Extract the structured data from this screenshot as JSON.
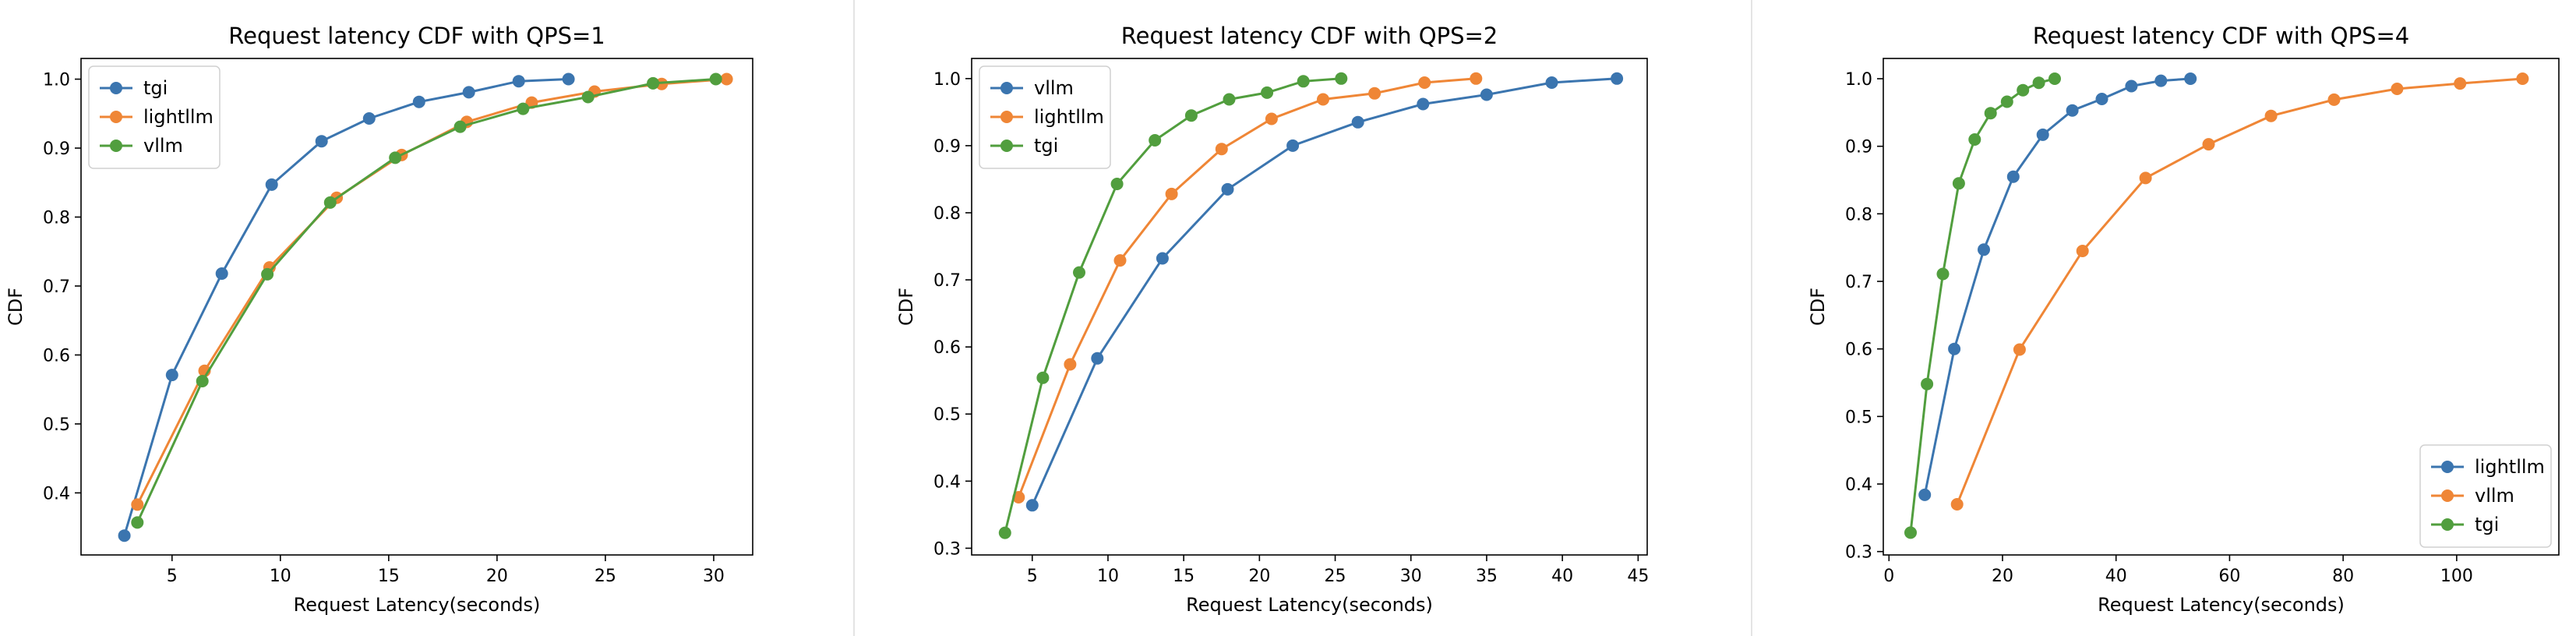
{
  "chart_data": [
    {
      "type": "line",
      "title": "Request latency CDF with QPS=1",
      "xlabel": "Request Latency(seconds)",
      "ylabel": "CDF",
      "xlim": [
        0.8,
        31.8
      ],
      "ylim": [
        0.31,
        1.03
      ],
      "xticks": [
        5,
        10,
        15,
        20,
        25,
        30
      ],
      "yticks": [
        0.4,
        0.5,
        0.6,
        0.7,
        0.8,
        0.9,
        1.0
      ],
      "grid": false,
      "legend_position": "top-left",
      "series": [
        {
          "name": "tgi",
          "color": "#3b75af",
          "x": [
            2.8,
            5.0,
            7.3,
            9.6,
            11.9,
            14.1,
            16.4,
            18.7,
            21.0,
            23.3
          ],
          "y": [
            0.338,
            0.571,
            0.718,
            0.847,
            0.91,
            0.943,
            0.967,
            0.981,
            0.997,
            1.0
          ]
        },
        {
          "name": "lightllm",
          "color": "#ef8636",
          "x": [
            3.4,
            6.5,
            9.5,
            12.6,
            15.6,
            18.6,
            21.6,
            24.5,
            27.6,
            30.6
          ],
          "y": [
            0.383,
            0.577,
            0.727,
            0.828,
            0.89,
            0.938,
            0.966,
            0.982,
            0.993,
            1.0
          ]
        },
        {
          "name": "vllm",
          "color": "#519e3e",
          "x": [
            3.4,
            6.4,
            9.4,
            12.3,
            15.3,
            18.3,
            21.2,
            24.2,
            27.2,
            30.1
          ],
          "y": [
            0.357,
            0.562,
            0.717,
            0.821,
            0.886,
            0.931,
            0.957,
            0.974,
            0.994,
            1.0
          ]
        }
      ]
    },
    {
      "type": "line",
      "title": "Request latency CDF with QPS=2",
      "xlabel": "Request Latency(seconds)",
      "ylabel": "CDF",
      "xlim": [
        1.0,
        45.6
      ],
      "ylim": [
        0.29,
        1.03
      ],
      "xticks": [
        5,
        10,
        15,
        20,
        25,
        30,
        35,
        40,
        45
      ],
      "yticks": [
        0.3,
        0.4,
        0.5,
        0.6,
        0.7,
        0.8,
        0.9,
        1.0
      ],
      "grid": false,
      "legend_position": "top-left",
      "series": [
        {
          "name": "vllm",
          "color": "#3b75af",
          "x": [
            5.0,
            9.3,
            13.6,
            17.9,
            22.2,
            26.5,
            30.8,
            35.0,
            39.3,
            43.6
          ],
          "y": [
            0.364,
            0.583,
            0.732,
            0.835,
            0.9,
            0.935,
            0.962,
            0.976,
            0.994,
            1.0
          ]
        },
        {
          "name": "lightllm",
          "color": "#ef8636",
          "x": [
            4.1,
            7.5,
            10.8,
            14.2,
            17.5,
            20.8,
            24.2,
            27.6,
            30.9,
            34.3
          ],
          "y": [
            0.376,
            0.574,
            0.729,
            0.828,
            0.895,
            0.94,
            0.969,
            0.978,
            0.994,
            1.0
          ]
        },
        {
          "name": "tgi",
          "color": "#519e3e",
          "x": [
            3.2,
            5.7,
            8.1,
            10.6,
            13.1,
            15.5,
            18.0,
            20.5,
            22.9,
            25.4
          ],
          "y": [
            0.323,
            0.554,
            0.711,
            0.843,
            0.908,
            0.945,
            0.969,
            0.979,
            0.996,
            1.0
          ]
        }
      ]
    },
    {
      "type": "line",
      "title": "Request latency CDF with QPS=4",
      "xlabel": "Request Latency(seconds)",
      "ylabel": "CDF",
      "xlim": [
        -1.0,
        118.0
      ],
      "ylim": [
        0.295,
        1.03
      ],
      "xticks": [
        0,
        20,
        40,
        60,
        80,
        100
      ],
      "yticks": [
        0.3,
        0.4,
        0.5,
        0.6,
        0.7,
        0.8,
        0.9,
        1.0
      ],
      "grid": false,
      "legend_position": "bottom-right",
      "series": [
        {
          "name": "lightllm",
          "color": "#3b75af",
          "x": [
            6.3,
            11.5,
            16.7,
            21.9,
            27.1,
            32.3,
            37.5,
            42.7,
            47.9,
            53.1
          ],
          "y": [
            0.384,
            0.6,
            0.747,
            0.855,
            0.917,
            0.953,
            0.97,
            0.989,
            0.997,
            1.0
          ]
        },
        {
          "name": "vllm",
          "color": "#ef8636",
          "x": [
            12.0,
            23.0,
            34.1,
            45.2,
            56.3,
            67.3,
            78.4,
            89.5,
            100.6,
            111.6
          ],
          "y": [
            0.37,
            0.599,
            0.745,
            0.853,
            0.903,
            0.945,
            0.969,
            0.985,
            0.993,
            1.0
          ]
        },
        {
          "name": "tgi",
          "color": "#519e3e",
          "x": [
            3.8,
            6.7,
            9.5,
            12.3,
            15.1,
            17.9,
            20.8,
            23.6,
            26.4,
            29.2
          ],
          "y": [
            0.328,
            0.548,
            0.711,
            0.845,
            0.91,
            0.949,
            0.966,
            0.983,
            0.994,
            1.0
          ]
        }
      ]
    }
  ]
}
